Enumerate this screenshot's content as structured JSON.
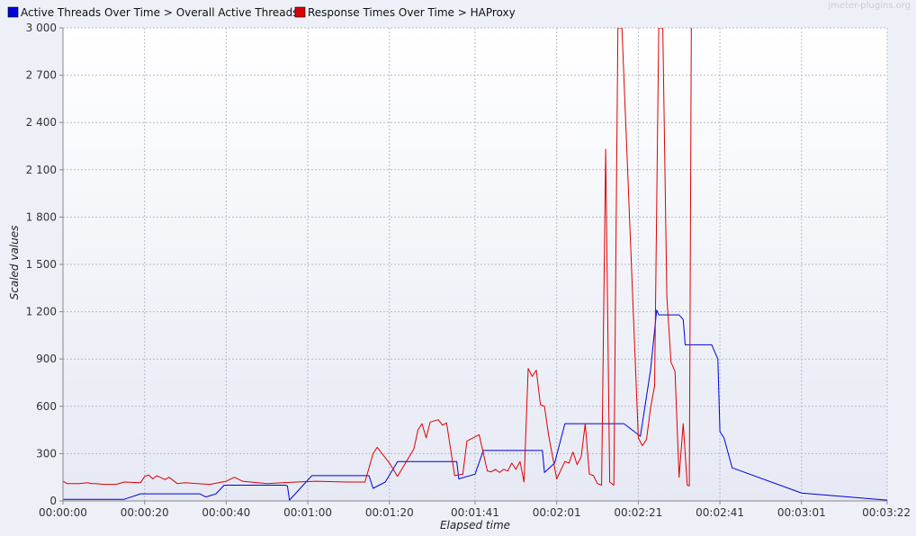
{
  "watermark": "jmeter-plugins.org",
  "legend": [
    {
      "label": "Active Threads Over Time > Overall Active Threads",
      "color": "#0000dd"
    },
    {
      "label": "Response Times Over Time > HAProxy",
      "color": "#dd0000"
    }
  ],
  "chart_data": {
    "type": "line",
    "title": "",
    "xlabel": "Elapsed time",
    "ylabel": "Scaled values",
    "xlim": [
      0,
      202
    ],
    "ylim": [
      0,
      3000
    ],
    "grid": true,
    "legend_position": "top-left",
    "y_ticks": [
      {
        "value": 0,
        "label": "0"
      },
      {
        "value": 300,
        "label": "300"
      },
      {
        "value": 600,
        "label": "600"
      },
      {
        "value": 900,
        "label": "900"
      },
      {
        "value": 1200,
        "label": "1 200"
      },
      {
        "value": 1500,
        "label": "1 500"
      },
      {
        "value": 1800,
        "label": "1 800"
      },
      {
        "value": 2100,
        "label": "2 100"
      },
      {
        "value": 2400,
        "label": "2 400"
      },
      {
        "value": 2700,
        "label": "2 700"
      },
      {
        "value": 3000,
        "label": "3 000"
      }
    ],
    "x_ticks": [
      {
        "value": 0,
        "label": "00:00:00"
      },
      {
        "value": 20,
        "label": "00:00:20"
      },
      {
        "value": 40,
        "label": "00:00:40"
      },
      {
        "value": 60,
        "label": "00:01:00"
      },
      {
        "value": 80,
        "label": "00:01:20"
      },
      {
        "value": 101,
        "label": "00:01:41"
      },
      {
        "value": 121,
        "label": "00:02:01"
      },
      {
        "value": 141,
        "label": "00:02:21"
      },
      {
        "value": 161,
        "label": "00:02:41"
      },
      {
        "value": 181,
        "label": "00:03:01"
      },
      {
        "value": 202,
        "label": "00:03:22"
      }
    ],
    "series": [
      {
        "name": "Active Threads Over Time > Overall Active Threads",
        "color": "#0000dd",
        "points": [
          [
            0,
            10
          ],
          [
            15,
            10
          ],
          [
            19,
            45
          ],
          [
            33.5,
            45
          ],
          [
            35,
            25
          ],
          [
            37.5,
            45
          ],
          [
            39.5,
            100
          ],
          [
            54.5,
            100
          ],
          [
            55,
            95
          ],
          [
            55.5,
            5
          ],
          [
            61,
            160
          ],
          [
            75,
            160
          ],
          [
            76,
            80
          ],
          [
            79,
            120
          ],
          [
            82,
            250
          ],
          [
            96.5,
            250
          ],
          [
            97,
            140
          ],
          [
            101,
            170
          ],
          [
            103,
            320
          ],
          [
            117.5,
            320
          ],
          [
            118,
            180
          ],
          [
            120.5,
            240
          ],
          [
            123,
            490
          ],
          [
            137.5,
            490
          ],
          [
            141.5,
            410
          ],
          [
            144,
            830
          ],
          [
            145.5,
            1210
          ],
          [
            146,
            1180
          ],
          [
            151,
            1180
          ],
          [
            152,
            1150
          ],
          [
            152.5,
            990
          ],
          [
            159,
            990
          ],
          [
            160.5,
            900
          ],
          [
            161,
            440
          ],
          [
            162,
            400
          ],
          [
            164,
            210
          ],
          [
            181,
            50
          ],
          [
            202,
            5
          ]
        ]
      },
      {
        "name": "Response Times Over Time > HAProxy",
        "color": "#dd0000",
        "points": [
          [
            0,
            125
          ],
          [
            1,
            110
          ],
          [
            4,
            110
          ],
          [
            6,
            115
          ],
          [
            7,
            110
          ],
          [
            8,
            110
          ],
          [
            10,
            105
          ],
          [
            13,
            105
          ],
          [
            15,
            120
          ],
          [
            19,
            115
          ],
          [
            20,
            155
          ],
          [
            21,
            165
          ],
          [
            22,
            140
          ],
          [
            23,
            160
          ],
          [
            25,
            135
          ],
          [
            26,
            150
          ],
          [
            28,
            110
          ],
          [
            30,
            115
          ],
          [
            33,
            110
          ],
          [
            36,
            105
          ],
          [
            40,
            125
          ],
          [
            42,
            150
          ],
          [
            44,
            125
          ],
          [
            50,
            110
          ],
          [
            57,
            120
          ],
          [
            62,
            125
          ],
          [
            70,
            120
          ],
          [
            74,
            120
          ],
          [
            76,
            300
          ],
          [
            77,
            340
          ],
          [
            80,
            240
          ],
          [
            82,
            155
          ],
          [
            86,
            330
          ],
          [
            87,
            450
          ],
          [
            88,
            490
          ],
          [
            89,
            400
          ],
          [
            90,
            500
          ],
          [
            92,
            515
          ],
          [
            93,
            480
          ],
          [
            94,
            495
          ],
          [
            96,
            160
          ],
          [
            98,
            170
          ],
          [
            99,
            380
          ],
          [
            102,
            420
          ],
          [
            104,
            190
          ],
          [
            105,
            185
          ],
          [
            106,
            200
          ],
          [
            107,
            180
          ],
          [
            108,
            200
          ],
          [
            109,
            190
          ],
          [
            110,
            240
          ],
          [
            111,
            200
          ],
          [
            112,
            250
          ],
          [
            113,
            120
          ],
          [
            114,
            840
          ],
          [
            115,
            790
          ],
          [
            116,
            830
          ],
          [
            117,
            610
          ],
          [
            118,
            600
          ],
          [
            119,
            420
          ],
          [
            121,
            140
          ],
          [
            123,
            250
          ],
          [
            124,
            240
          ],
          [
            125,
            310
          ],
          [
            126,
            230
          ],
          [
            127,
            280
          ],
          [
            128,
            490
          ],
          [
            129,
            170
          ],
          [
            130,
            160
          ],
          [
            131,
            110
          ],
          [
            132,
            100
          ],
          [
            133,
            2230
          ],
          [
            134,
            120
          ],
          [
            135,
            100
          ],
          [
            136,
            3000
          ],
          [
            137,
            3000
          ],
          [
            139,
            1700
          ],
          [
            141,
            400
          ],
          [
            142,
            350
          ],
          [
            143,
            390
          ],
          [
            144,
            590
          ],
          [
            145,
            730
          ],
          [
            146,
            3000
          ],
          [
            147,
            3000
          ],
          [
            148,
            1300
          ],
          [
            149,
            880
          ],
          [
            150,
            820
          ],
          [
            151,
            150
          ],
          [
            152,
            490
          ],
          [
            153,
            100
          ],
          [
            153.5,
            95
          ],
          [
            154,
            3000
          ]
        ]
      }
    ]
  }
}
